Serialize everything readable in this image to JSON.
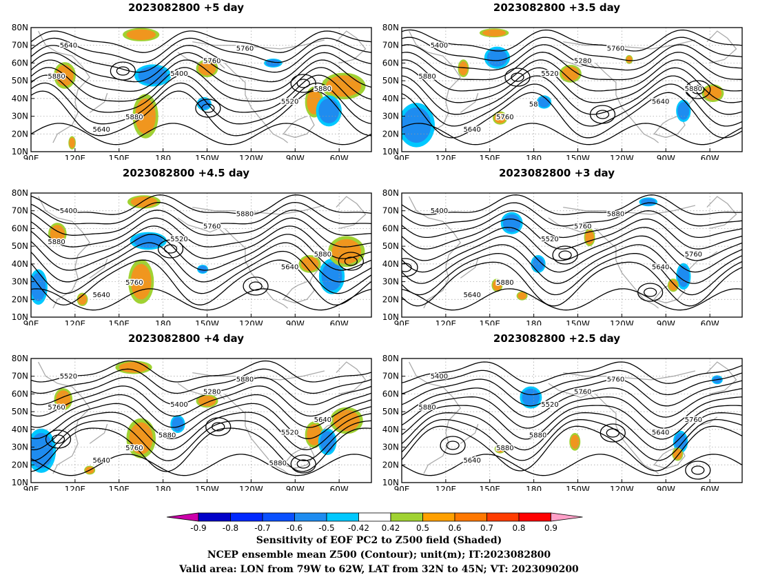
{
  "panels": [
    {
      "title": "2023082800  +5 day",
      "col": 0,
      "row": 0,
      "contour_labels": [
        "5640",
        "5400",
        "5520",
        "5640",
        "5760",
        "5880",
        "5880",
        "5760",
        "5880"
      ],
      "features": [
        {
          "type": "pos",
          "lon": 113,
          "lat": 53,
          "rx": 6,
          "ry": 6
        },
        {
          "type": "pos",
          "lon": 168,
          "lat": 30,
          "rx": 7,
          "ry": 10
        },
        {
          "type": "pos",
          "lon": 210,
          "lat": 57,
          "rx": 6,
          "ry": 4
        },
        {
          "type": "pos",
          "lon": 165,
          "lat": 76,
          "rx": 10,
          "ry": 3
        },
        {
          "type": "pos",
          "lon": 283,
          "lat": 38,
          "rx": 5,
          "ry": 7
        },
        {
          "type": "pos",
          "lon": 303,
          "lat": 47,
          "rx": 12,
          "ry": 6
        },
        {
          "type": "pos",
          "lon": 118,
          "lat": 15,
          "rx": 2,
          "ry": 3
        },
        {
          "type": "neg",
          "lon": 173,
          "lat": 53,
          "rx": 10,
          "ry": 5
        },
        {
          "type": "neg",
          "lon": 208,
          "lat": 37,
          "rx": 4,
          "ry": 3
        },
        {
          "type": "neg",
          "lon": 293,
          "lat": 33,
          "rx": 7,
          "ry": 7
        },
        {
          "type": "neg",
          "lon": 255,
          "lat": 60,
          "rx": 5,
          "ry": 2
        }
      ]
    },
    {
      "title": "2023082800  +3.5 day",
      "col": 1,
      "row": 0,
      "contour_labels": [
        "5400",
        "5520",
        "5640",
        "5640",
        "5280",
        "5880",
        "5760",
        "5760",
        "5880",
        "58"
      ],
      "features": [
        {
          "type": "neg",
          "lon": 100,
          "lat": 25,
          "rx": 10,
          "ry": 10
        },
        {
          "type": "pos",
          "lon": 157,
          "lat": 29,
          "rx": 4,
          "ry": 3
        },
        {
          "type": "pos",
          "lon": 132,
          "lat": 57,
          "rx": 3,
          "ry": 4
        },
        {
          "type": "neg",
          "lon": 155,
          "lat": 63,
          "rx": 7,
          "ry": 5
        },
        {
          "type": "pos",
          "lon": 153,
          "lat": 77,
          "rx": 8,
          "ry": 2
        },
        {
          "type": "pos",
          "lon": 205,
          "lat": 54,
          "rx": 6,
          "ry": 4
        },
        {
          "type": "neg",
          "lon": 187,
          "lat": 38,
          "rx": 4,
          "ry": 3
        },
        {
          "type": "neg",
          "lon": 282,
          "lat": 33,
          "rx": 4,
          "ry": 5
        },
        {
          "type": "pos",
          "lon": 302,
          "lat": 43,
          "rx": 6,
          "ry": 4
        },
        {
          "type": "pos",
          "lon": 245,
          "lat": 62,
          "rx": 2,
          "ry": 2
        }
      ]
    },
    {
      "title": "2023082800  +4.5 day",
      "col": 0,
      "row": 1,
      "contour_labels": [
        "5400",
        "5520",
        "5640",
        "5640",
        "5760",
        "5880",
        "5760",
        "5880",
        "5880"
      ],
      "features": [
        {
          "type": "pos",
          "lon": 108,
          "lat": 57,
          "rx": 5,
          "ry": 5
        },
        {
          "type": "pos",
          "lon": 165,
          "lat": 30,
          "rx": 7,
          "ry": 10
        },
        {
          "type": "pos",
          "lon": 167,
          "lat": 75,
          "rx": 9,
          "ry": 3
        },
        {
          "type": "neg",
          "lon": 170,
          "lat": 53,
          "rx": 10,
          "ry": 4
        },
        {
          "type": "neg",
          "lon": 207,
          "lat": 37,
          "rx": 3,
          "ry": 2
        },
        {
          "type": "neg",
          "lon": 295,
          "lat": 33,
          "rx": 7,
          "ry": 8
        },
        {
          "type": "pos",
          "lon": 280,
          "lat": 40,
          "rx": 6,
          "ry": 4
        },
        {
          "type": "pos",
          "lon": 305,
          "lat": 47,
          "rx": 10,
          "ry": 7
        },
        {
          "type": "neg",
          "lon": 95,
          "lat": 27,
          "rx": 5,
          "ry": 8
        },
        {
          "type": "pos",
          "lon": 125,
          "lat": 20,
          "rx": 3,
          "ry": 3
        }
      ]
    },
    {
      "title": "2023082800  +3 day",
      "col": 1,
      "row": 1,
      "contour_labels": [
        "5400",
        "5520",
        "5640",
        "5640",
        "5760",
        "5760",
        "5880",
        "5880"
      ],
      "features": [
        {
          "type": "neg",
          "lon": 165,
          "lat": 63,
          "rx": 6,
          "ry": 5
        },
        {
          "type": "neg",
          "lon": 183,
          "lat": 40,
          "rx": 4,
          "ry": 4
        },
        {
          "type": "pos",
          "lon": 155,
          "lat": 28,
          "rx": 3,
          "ry": 3
        },
        {
          "type": "neg",
          "lon": 282,
          "lat": 33,
          "rx": 4,
          "ry": 6
        },
        {
          "type": "pos",
          "lon": 275,
          "lat": 28,
          "rx": 3,
          "ry": 3
        },
        {
          "type": "pos",
          "lon": 218,
          "lat": 55,
          "rx": 3,
          "ry": 4
        },
        {
          "type": "neg",
          "lon": 258,
          "lat": 75,
          "rx": 5,
          "ry": 2
        },
        {
          "type": "pos",
          "lon": 172,
          "lat": 22,
          "rx": 3,
          "ry": 2
        }
      ]
    },
    {
      "title": "2023082800  +4 day",
      "col": 0,
      "row": 2,
      "contour_labels": [
        "5520",
        "5400",
        "5520",
        "5640",
        "5280",
        "5640",
        "5760",
        "5880",
        "5760",
        "5880",
        "5880"
      ],
      "features": [
        {
          "type": "neg",
          "lon": 97,
          "lat": 28,
          "rx": 8,
          "ry": 10
        },
        {
          "type": "pos",
          "lon": 112,
          "lat": 57,
          "rx": 5,
          "ry": 5
        },
        {
          "type": "pos",
          "lon": 165,
          "lat": 35,
          "rx": 8,
          "ry": 9
        },
        {
          "type": "pos",
          "lon": 160,
          "lat": 75,
          "rx": 10,
          "ry": 3
        },
        {
          "type": "neg",
          "lon": 190,
          "lat": 43,
          "rx": 4,
          "ry": 4
        },
        {
          "type": "pos",
          "lon": 210,
          "lat": 56,
          "rx": 6,
          "ry": 3
        },
        {
          "type": "pos",
          "lon": 283,
          "lat": 37,
          "rx": 5,
          "ry": 6
        },
        {
          "type": "neg",
          "lon": 292,
          "lat": 33,
          "rx": 5,
          "ry": 6
        },
        {
          "type": "pos",
          "lon": 305,
          "lat": 45,
          "rx": 9,
          "ry": 6
        },
        {
          "type": "pos",
          "lon": 130,
          "lat": 17,
          "rx": 3,
          "ry": 2
        }
      ]
    },
    {
      "title": "2023082800  +2.5 day",
      "col": 1,
      "row": 2,
      "contour_labels": [
        "5400",
        "5520",
        "5640",
        "5640",
        "5760",
        "5760",
        "5880",
        "5760",
        "5880",
        "5880"
      ],
      "features": [
        {
          "type": "neg",
          "lon": 178,
          "lat": 58,
          "rx": 6,
          "ry": 5
        },
        {
          "type": "pos",
          "lon": 208,
          "lat": 33,
          "rx": 3,
          "ry": 4
        },
        {
          "type": "neg",
          "lon": 280,
          "lat": 33,
          "rx": 4,
          "ry": 5
        },
        {
          "type": "pos",
          "lon": 278,
          "lat": 26,
          "rx": 3,
          "ry": 3
        },
        {
          "type": "pos",
          "lon": 157,
          "lat": 29,
          "rx": 3,
          "ry": 2
        },
        {
          "type": "neg",
          "lon": 305,
          "lat": 68,
          "rx": 3,
          "ry": 2
        }
      ]
    }
  ],
  "axes": {
    "lon_ticks": [
      "90E",
      "120E",
      "150E",
      "180",
      "150W",
      "120W",
      "90W",
      "60W"
    ],
    "lat_ticks": [
      "80N",
      "70N",
      "60N",
      "50N",
      "40N",
      "30N",
      "20N",
      "10N"
    ],
    "lon_range": [
      90,
      322
    ],
    "lat_range": [
      10,
      80
    ]
  },
  "colorbar": {
    "labels": [
      "-0.9",
      "-0.8",
      "-0.7",
      "-0.6",
      "-0.5",
      "-0.42",
      "0.42",
      "0.5",
      "0.6",
      "0.7",
      "0.8",
      "0.9"
    ],
    "colors": [
      "#cc00aa",
      "#0000c8",
      "#0028ff",
      "#0a50ff",
      "#1e8cf0",
      "#00c8ff",
      "#ffffff",
      "#a0d232",
      "#ffa000",
      "#ff7800",
      "#ff3c00",
      "#ff0000",
      "#ffa0c8"
    ]
  },
  "colors": {
    "positive_shade": "#f0961e",
    "positive_edge": "#a0d232",
    "negative_shade": "#1e8cf0",
    "negative_edge": "#00c8ff",
    "coast": "#aaaaaa",
    "contour": "#000000",
    "grid": "#9a9a9a"
  },
  "captions": {
    "line1": "Sensitivity of EOF PC2 to Z500 field (Shaded)",
    "line2": "NCEP ensemble mean Z500 (Contour); unit(m); IT:2023082800",
    "line3": "Valid area: LON from 79W to 62W, LAT from 32N to 45N; VT: 2023090200"
  }
}
